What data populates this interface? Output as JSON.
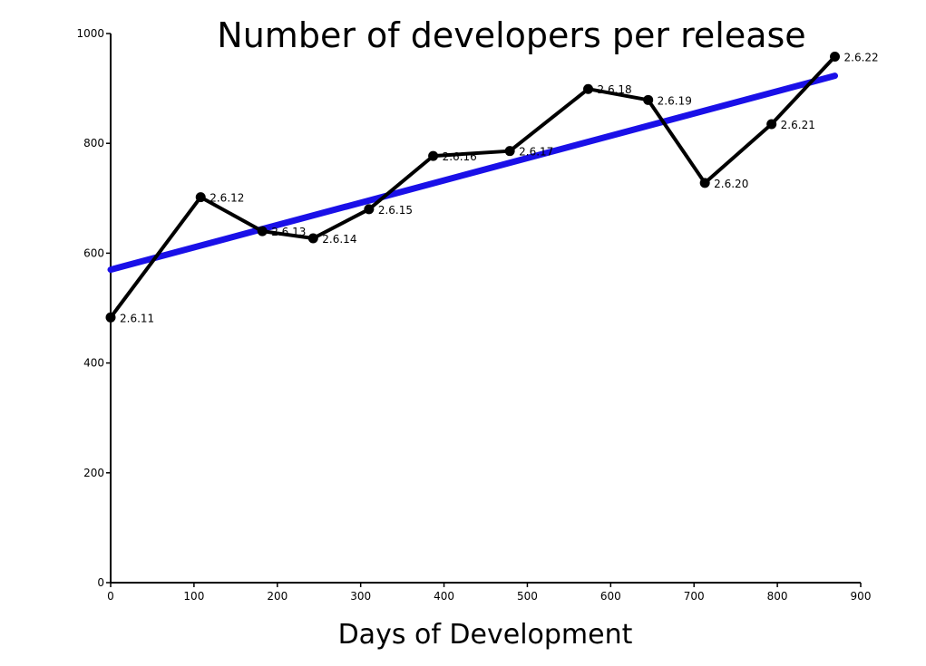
{
  "chart_data": {
    "type": "line",
    "title": "Number of developers per release",
    "xlabel": "Days of Development",
    "ylabel": "",
    "xlim": [
      0,
      900
    ],
    "ylim": [
      0,
      1000
    ],
    "x_ticks": [
      "0",
      "100",
      "200",
      "300",
      "400",
      "500",
      "600",
      "700",
      "800",
      "900"
    ],
    "y_ticks": [
      "0",
      "200",
      "400",
      "600",
      "800",
      "1000"
    ],
    "grid": false,
    "series": [
      {
        "type": "line",
        "color": "#000000",
        "points": [
          {
            "label": "2.6.11",
            "x": 0,
            "y": 483
          },
          {
            "label": "2.6.12",
            "x": 108,
            "y": 702
          },
          {
            "label": "2.6.13",
            "x": 182,
            "y": 640
          },
          {
            "label": "2.6.14",
            "x": 243,
            "y": 627
          },
          {
            "label": "2.6.15",
            "x": 310,
            "y": 680
          },
          {
            "label": "2.6.16",
            "x": 387,
            "y": 777
          },
          {
            "label": "2.6.17",
            "x": 479,
            "y": 786
          },
          {
            "label": "2.6.18",
            "x": 573,
            "y": 899
          },
          {
            "label": "2.6.19",
            "x": 645,
            "y": 879
          },
          {
            "label": "2.6.20",
            "x": 713,
            "y": 728
          },
          {
            "label": "2.6.21",
            "x": 793,
            "y": 835
          },
          {
            "label": "2.6.22",
            "x": 869,
            "y": 958
          }
        ]
      },
      {
        "type": "trend",
        "color": "#1a10e8",
        "points": [
          {
            "x": 0,
            "y": 570
          },
          {
            "x": 869,
            "y": 923
          }
        ]
      }
    ]
  }
}
